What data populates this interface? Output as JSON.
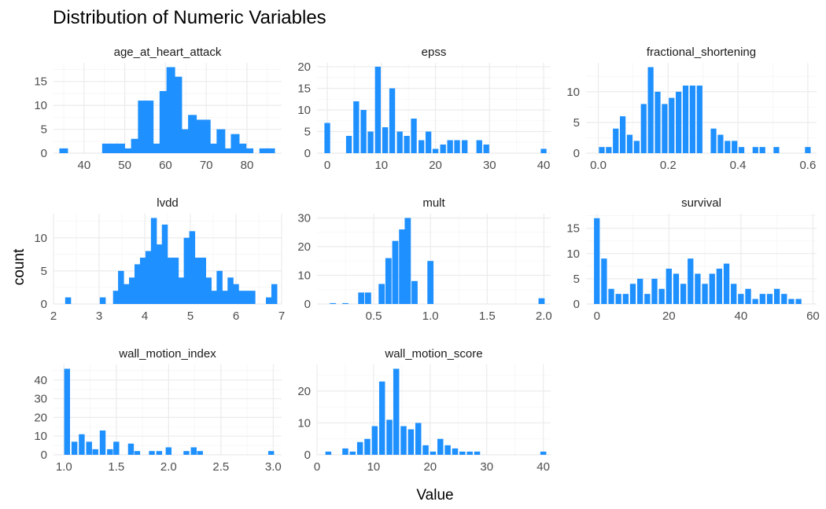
{
  "chart_title": "Distribution of Numeric Variables",
  "xlabel": "Value",
  "ylabel": "count",
  "colors": {
    "bar": "#1E90FF",
    "grid_major": "#EBEBEB",
    "grid_minor": "#F5F5F5",
    "background": "#FFFFFF"
  },
  "chart_data": [
    {
      "type": "bar",
      "title": "age_at_heart_attack",
      "x": [
        35,
        45.5,
        47.3,
        49,
        50.8,
        52.6,
        54.3,
        56,
        57.8,
        59.6,
        61.3,
        63,
        64.8,
        66.6,
        68.3,
        70,
        71.8,
        73.6,
        75.3,
        77.1,
        78.8,
        80.5,
        84.1,
        85.8
      ],
      "values": [
        1,
        2,
        2,
        2,
        1,
        3,
        11,
        11,
        2,
        13,
        18,
        16,
        5,
        8,
        7,
        7,
        2,
        5,
        1,
        4,
        2,
        1,
        1,
        1
      ],
      "xticks": [
        40,
        50,
        60,
        70,
        80
      ],
      "yticks": [
        0,
        5,
        10,
        15
      ],
      "xlim": [
        32.5,
        88.5
      ],
      "ylim": [
        0,
        18.9
      ]
    },
    {
      "type": "bar",
      "title": "epss",
      "x": [
        0,
        4,
        5.35,
        6.7,
        8,
        9.35,
        10.7,
        12,
        13.4,
        14.7,
        16,
        17.4,
        18.7,
        20,
        21.4,
        22.7,
        24,
        25.4,
        28.1,
        29.4,
        40
      ],
      "values": [
        7,
        4,
        12,
        10,
        5,
        20,
        6,
        15,
        5,
        4,
        8,
        3,
        5,
        1,
        2,
        3,
        3,
        3,
        3,
        2,
        1
      ],
      "xticks": [
        0,
        10,
        20,
        30,
        40
      ],
      "yticks": [
        0,
        5,
        10,
        15,
        20
      ],
      "xlim": [
        -1.9,
        41.3
      ],
      "ylim": [
        0,
        20.9
      ]
    },
    {
      "type": "bar",
      "title": "fractional_shortening",
      "x": [
        0.01,
        0.03,
        0.05,
        0.07,
        0.09,
        0.11,
        0.13,
        0.15,
        0.17,
        0.19,
        0.21,
        0.23,
        0.25,
        0.27,
        0.29,
        0.33,
        0.35,
        0.37,
        0.39,
        0.41,
        0.45,
        0.47,
        0.51,
        0.6
      ],
      "values": [
        1,
        1,
        4,
        6,
        3,
        2,
        8,
        14,
        10,
        8,
        9,
        10,
        11,
        11,
        11,
        4,
        3,
        2,
        2,
        1,
        1,
        1,
        1,
        1
      ],
      "xticks": [
        0.0,
        0.2,
        0.4,
        0.6
      ],
      "yticks": [
        0,
        5,
        10
      ],
      "xlim": [
        -0.035,
        0.625
      ],
      "ylim": [
        0,
        14.7
      ]
    },
    {
      "type": "bar",
      "title": "lvdd",
      "x": [
        2.32,
        3.08,
        3.37,
        3.48,
        3.6,
        3.72,
        3.84,
        3.96,
        4.08,
        4.2,
        4.32,
        4.44,
        4.56,
        4.68,
        4.8,
        4.92,
        5.04,
        5.16,
        5.28,
        5.4,
        5.52,
        5.64,
        5.76,
        5.88,
        6.0,
        6.12,
        6.24,
        6.36,
        6.72,
        6.84
      ],
      "values": [
        1,
        1,
        2,
        5,
        3,
        4,
        6,
        7,
        8,
        13,
        9,
        12,
        7,
        7,
        4,
        10,
        11,
        7,
        7,
        4,
        2,
        5,
        2,
        4,
        3,
        2,
        2,
        2,
        1,
        3
      ],
      "xticks": [
        2,
        3,
        4,
        5,
        6,
        7
      ],
      "yticks": [
        0,
        5,
        10
      ],
      "xlim": [
        2.0,
        7.0
      ],
      "ylim": [
        0,
        13.65
      ]
    },
    {
      "type": "bar",
      "title": "mult",
      "x": [
        0.14,
        0.25,
        0.39,
        0.45,
        0.57,
        0.63,
        0.69,
        0.75,
        0.8,
        0.86,
        1.0,
        1.98
      ],
      "values": [
        0.3,
        0.3,
        4,
        4,
        7,
        16,
        22,
        26,
        30,
        8,
        15,
        2
      ],
      "xticks": [
        0.5,
        1.0,
        1.5,
        2.0
      ],
      "yticks": [
        0,
        10,
        20,
        30
      ],
      "xlim": [
        0.0,
        2.06
      ],
      "ylim": [
        0,
        31.5
      ]
    },
    {
      "type": "bar",
      "title": "survival",
      "x": [
        0,
        2,
        4,
        6,
        8,
        10,
        12,
        14,
        16,
        18,
        20,
        22,
        24,
        26,
        28,
        30,
        32,
        34,
        36,
        38,
        40,
        42,
        44,
        46,
        48,
        50,
        52,
        54,
        56
      ],
      "values": [
        17,
        9,
        3,
        2,
        2,
        4,
        5,
        2,
        5,
        3,
        7,
        6,
        4,
        9,
        6,
        4,
        6,
        7,
        8,
        4,
        2,
        3,
        1,
        2,
        2,
        3,
        2,
        1,
        1
      ],
      "xticks": [
        0,
        20,
        40,
        60
      ],
      "yticks": [
        0,
        5,
        10,
        15
      ],
      "xlim": [
        -3.0,
        61.0
      ],
      "ylim": [
        0,
        17.9
      ]
    },
    {
      "type": "bar",
      "title": "wall_motion_index",
      "x": [
        1.03,
        1.1,
        1.17,
        1.24,
        1.3,
        1.37,
        1.44,
        1.5,
        1.64,
        1.7,
        1.84,
        1.91,
        2.0,
        2.17,
        2.24,
        2.3,
        2.98
      ],
      "values": [
        46,
        7,
        11,
        7,
        3,
        13,
        3,
        7,
        6,
        2,
        2,
        2,
        4,
        2,
        4,
        2,
        2
      ],
      "xticks": [
        1.0,
        1.5,
        2.0,
        2.5,
        3.0
      ],
      "yticks": [
        0,
        10,
        20,
        30,
        40
      ],
      "xlim": [
        0.9,
        3.08
      ],
      "ylim": [
        0,
        48.3
      ]
    },
    {
      "type": "bar",
      "title": "wall_motion_score",
      "x": [
        2,
        5,
        6.3,
        7.6,
        8.9,
        10.2,
        11.5,
        12.8,
        14,
        15.3,
        16.6,
        17.9,
        19.2,
        20.5,
        21.8,
        23.1,
        24.4,
        25.7,
        27,
        28.3,
        40
      ],
      "values": [
        1,
        2,
        1,
        4,
        5,
        9,
        23,
        11,
        27,
        9,
        8,
        10,
        3,
        1,
        5,
        3,
        2,
        1,
        1,
        1,
        1
      ],
      "xticks": [
        0,
        10,
        20,
        30,
        40
      ],
      "yticks": [
        0,
        10,
        20
      ],
      "xlim": [
        0,
        41.3
      ],
      "ylim": [
        0,
        28.35
      ]
    }
  ]
}
